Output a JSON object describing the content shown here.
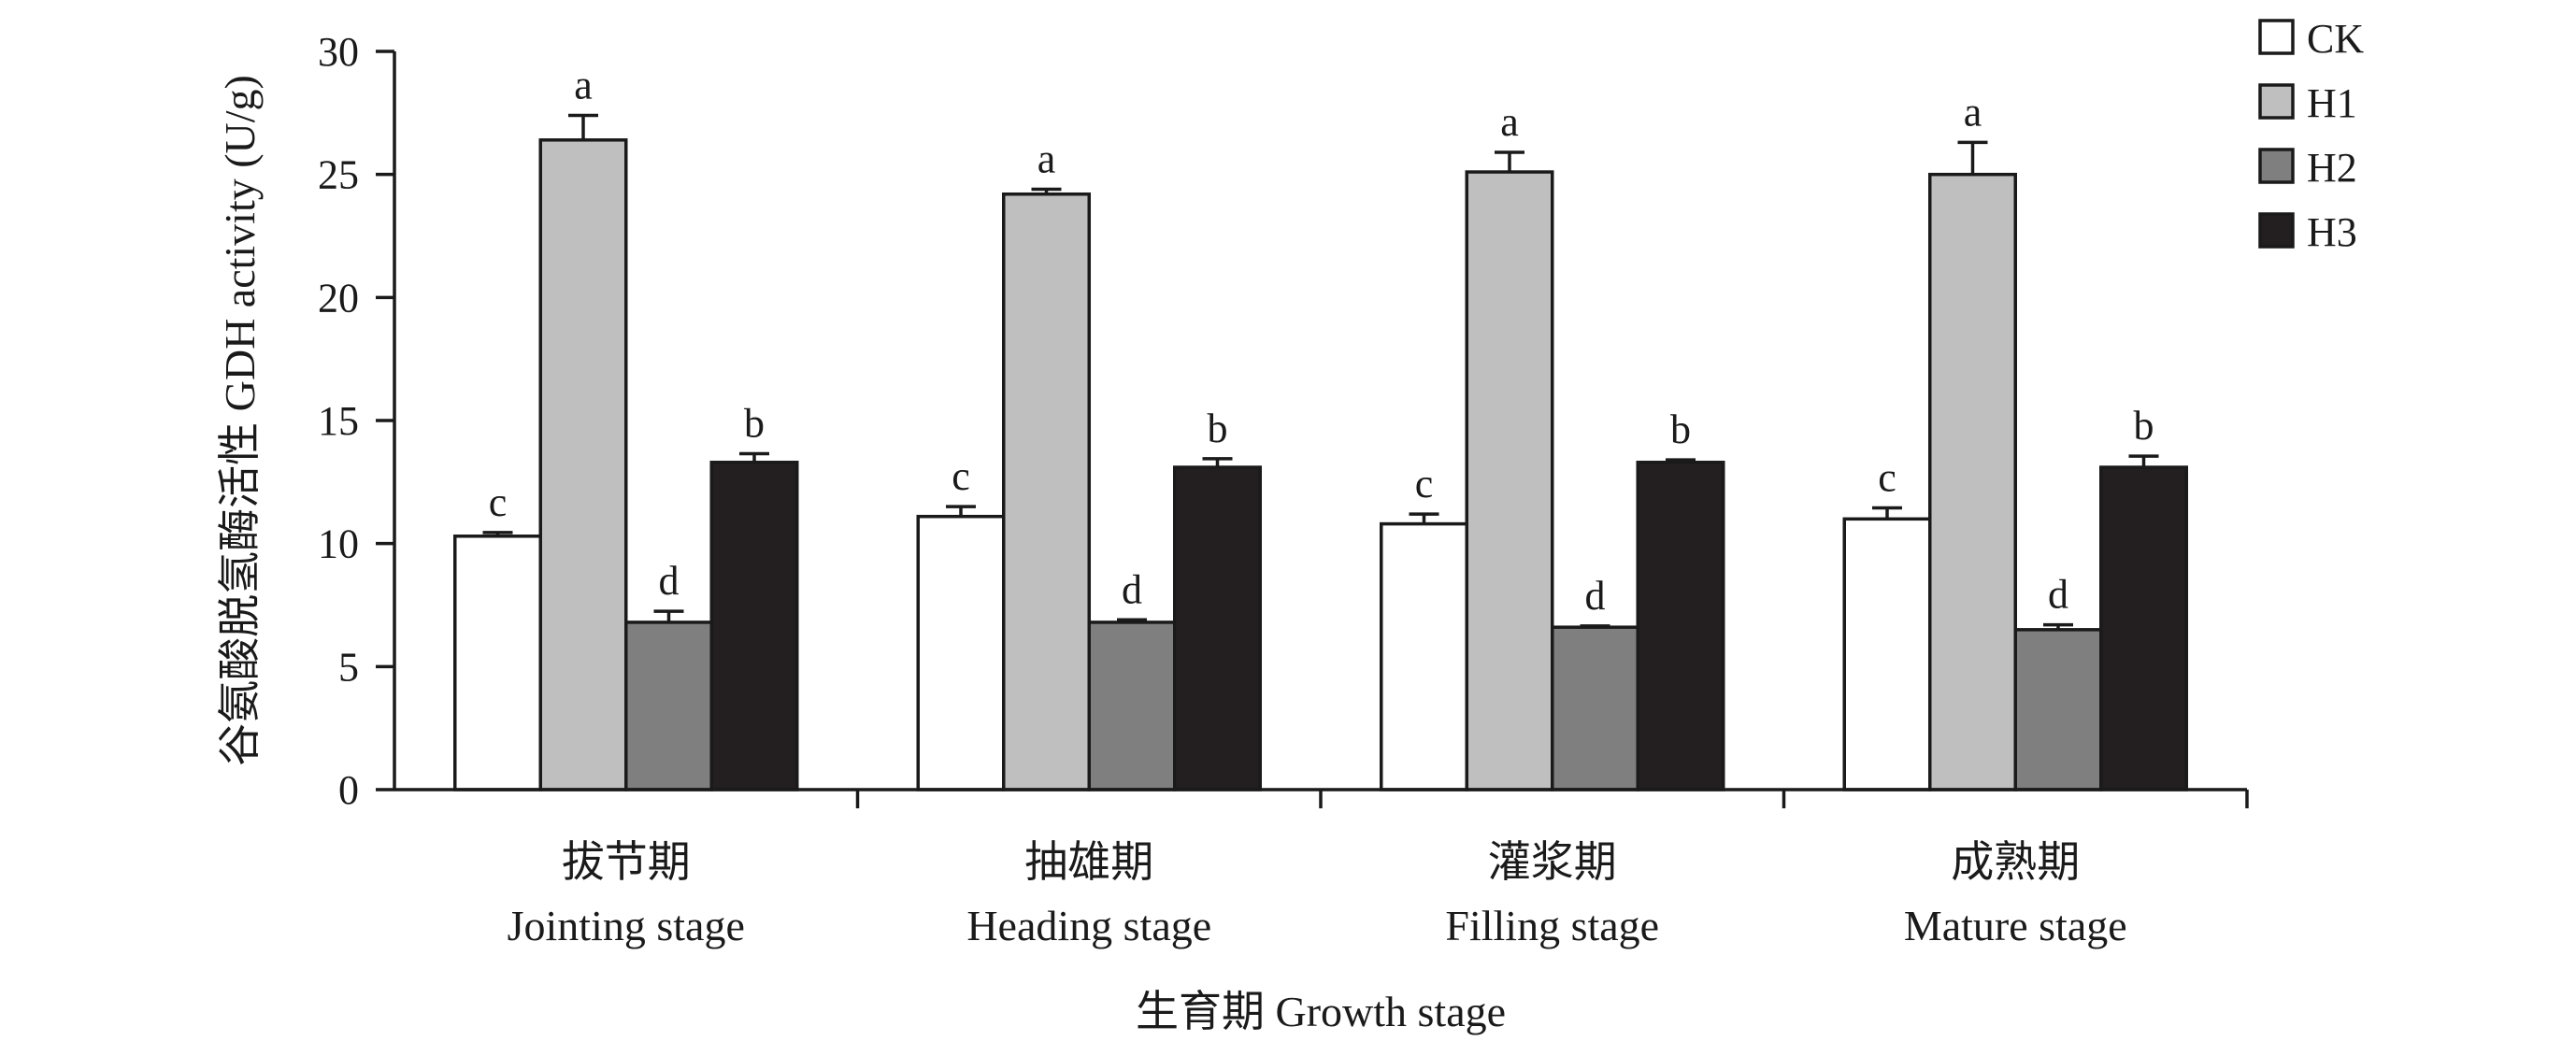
{
  "chart_data": {
    "type": "bar",
    "ylabel": "谷氨酸脱氢酶活性 GDH activity (U/g)",
    "xlabel": "生育期 Growth stage",
    "ylim": [
      0,
      30
    ],
    "yticks": [
      "0",
      "5",
      "10",
      "15",
      "20",
      "25",
      "30"
    ],
    "categories": [
      {
        "cn": "拔节期",
        "en": "Jointing stage"
      },
      {
        "cn": "抽雄期",
        "en": "Heading stage"
      },
      {
        "cn": "灌浆期",
        "en": "Filling stage"
      },
      {
        "cn": "成熟期",
        "en": "Mature stage"
      }
    ],
    "series": [
      {
        "name": "CK",
        "color": "#ffffff",
        "values": [
          10.3,
          11.1,
          10.8,
          11.0
        ],
        "errors": [
          0.15,
          0.4,
          0.4,
          0.45
        ],
        "labels": [
          "c",
          "c",
          "c",
          "c"
        ]
      },
      {
        "name": "H1",
        "color": "#bfbfbf",
        "values": [
          26.4,
          24.2,
          25.1,
          25.0
        ],
        "errors": [
          1.0,
          0.2,
          0.8,
          1.3
        ],
        "labels": [
          "a",
          "a",
          "a",
          "a"
        ]
      },
      {
        "name": "H2",
        "color": "#7f7f7f",
        "values": [
          6.8,
          6.8,
          6.6,
          6.5
        ],
        "errors": [
          0.45,
          0.1,
          0.05,
          0.2
        ],
        "labels": [
          "d",
          "d",
          "d",
          "d"
        ]
      },
      {
        "name": "H3",
        "color": "#231f20",
        "values": [
          13.3,
          13.1,
          13.3,
          13.1
        ],
        "errors": [
          0.35,
          0.35,
          0.1,
          0.45
        ],
        "labels": [
          "b",
          "b",
          "b",
          "b"
        ]
      }
    ],
    "legend_position": "top-right",
    "grid": false
  }
}
